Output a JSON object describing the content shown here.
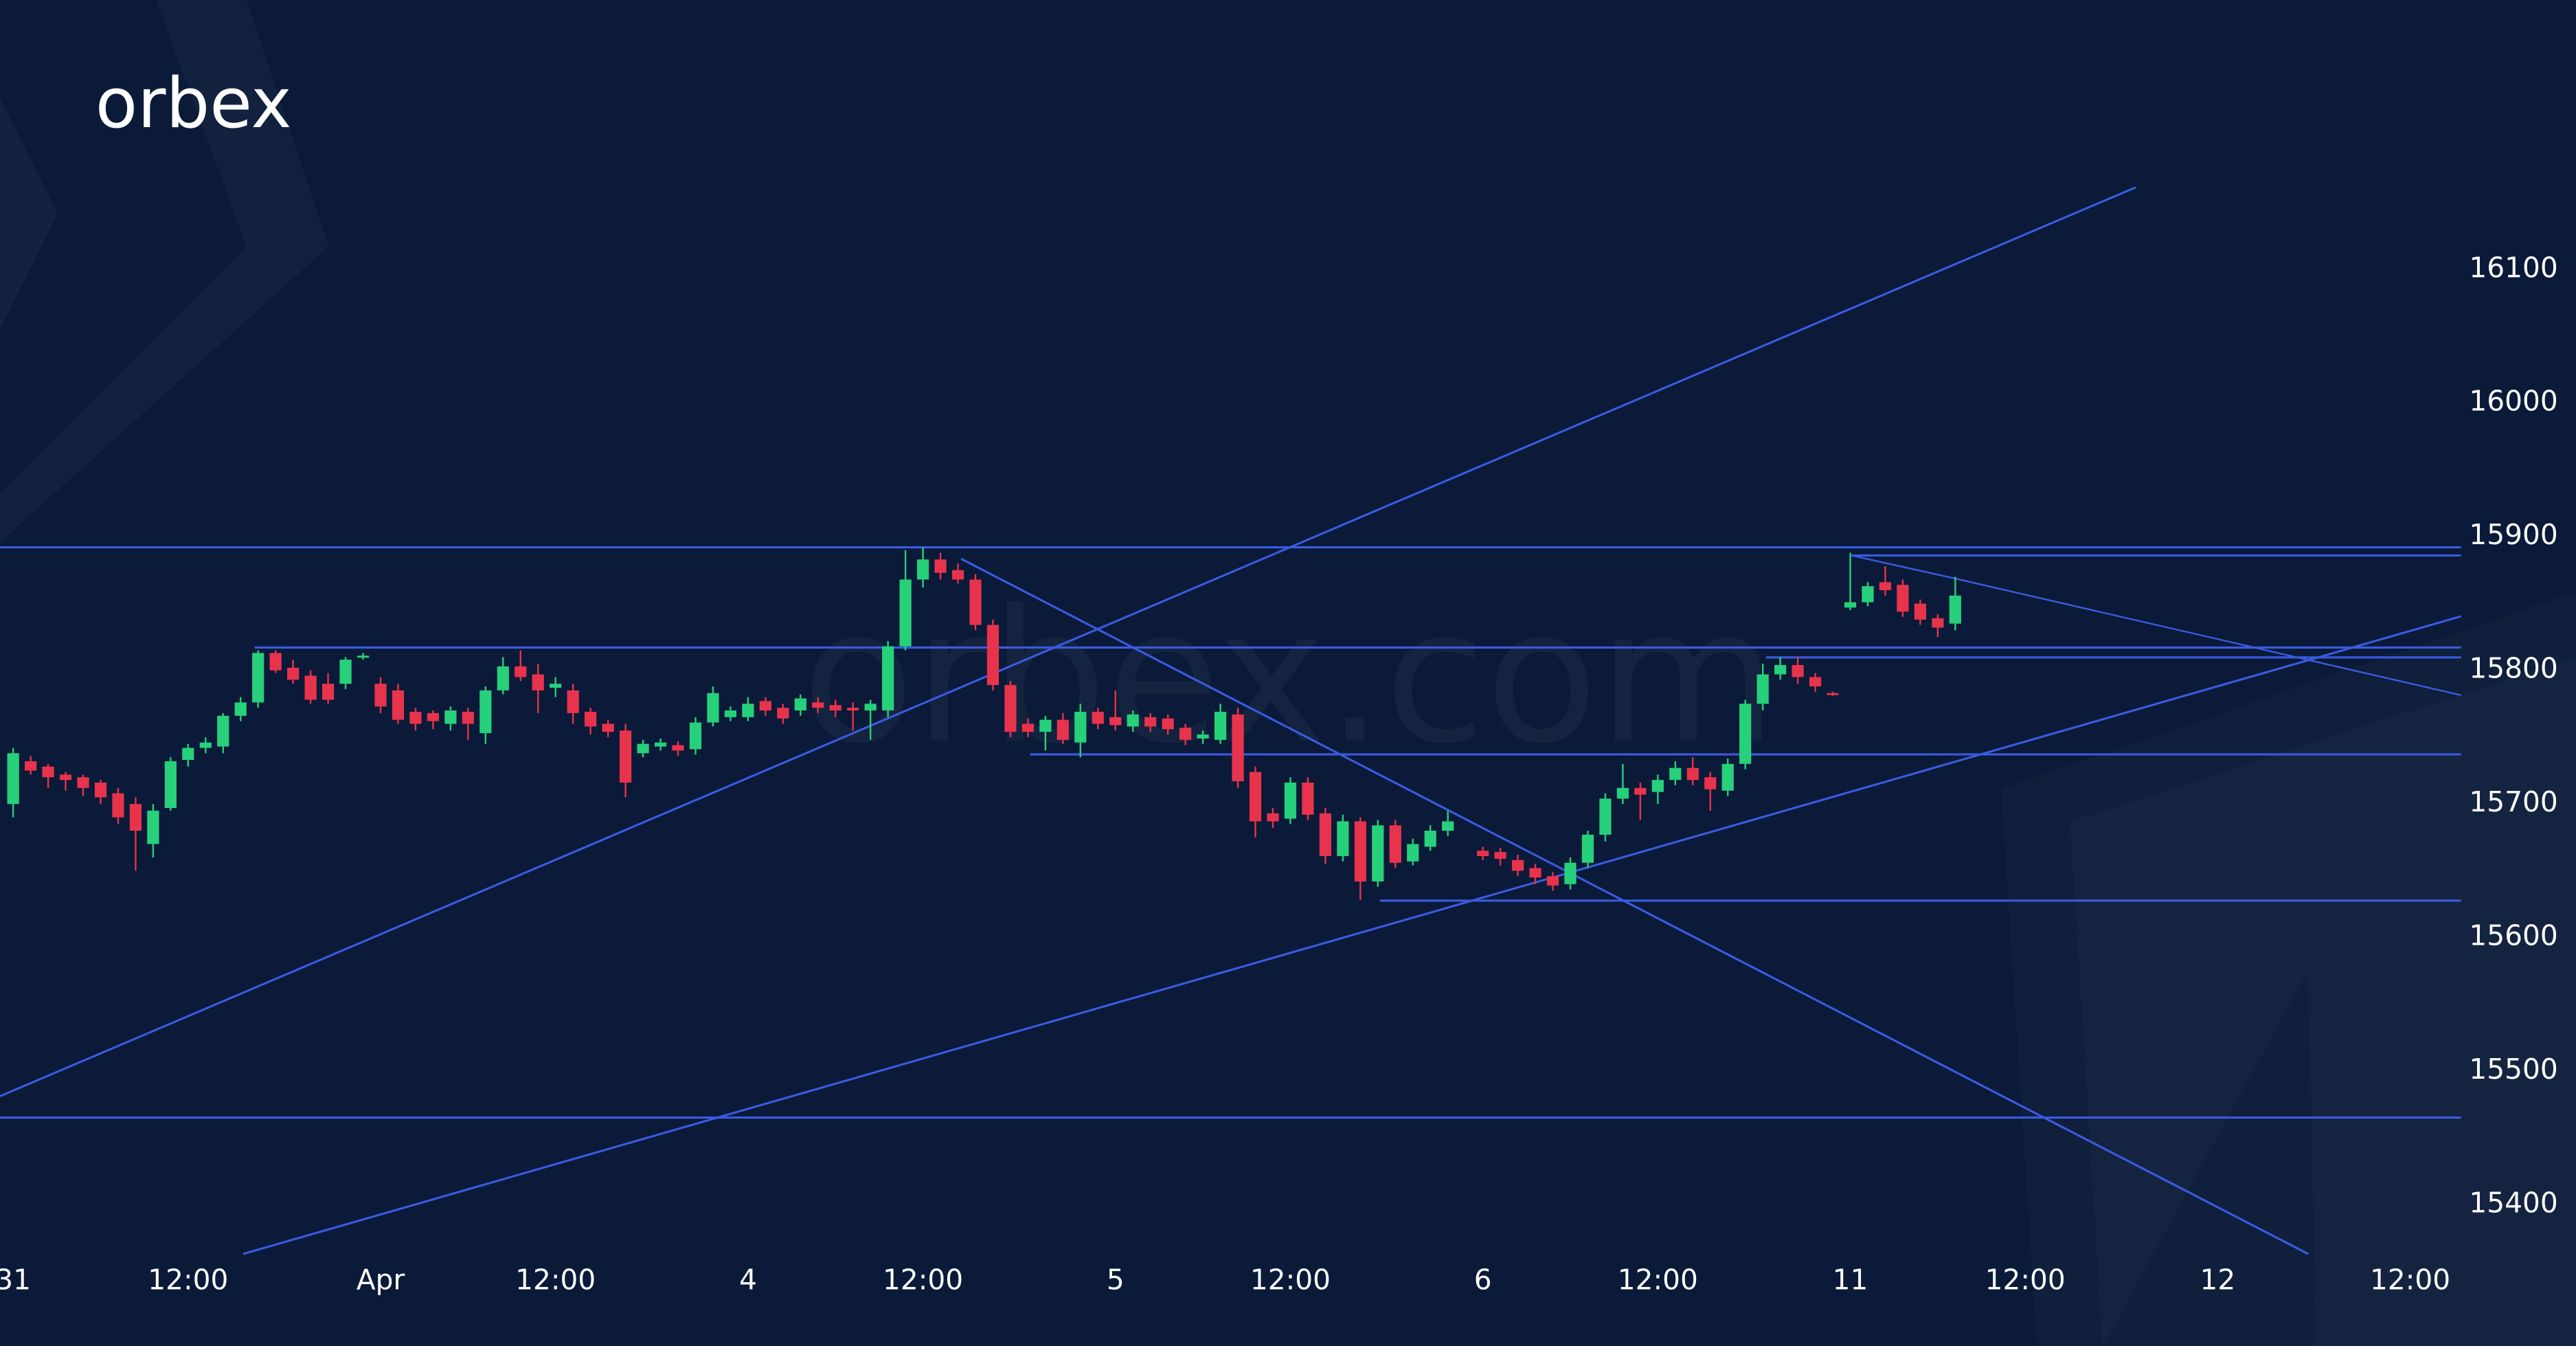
{
  "logo": "orbex",
  "watermark": "orbex.com",
  "chart_data": {
    "type": "candlestick",
    "up_color": "#27d07a",
    "down_color": "#e8334c",
    "ylim": [
      15300,
      16300
    ],
    "yticks": [
      15400,
      15500,
      15600,
      15700,
      15800,
      15900,
      16000,
      16100
    ],
    "categories": [
      "31",
      null,
      null,
      null,
      null,
      null,
      null,
      null,
      null,
      null,
      "12:00",
      null,
      null,
      null,
      null,
      null,
      null,
      null,
      null,
      null,
      null,
      "Apr",
      null,
      null,
      null,
      null,
      null,
      null,
      null,
      null,
      null,
      "12:00",
      null,
      null,
      null,
      null,
      null,
      null,
      null,
      null,
      null,
      null,
      "4",
      null,
      null,
      null,
      null,
      null,
      null,
      null,
      null,
      null,
      "12:00",
      null,
      null,
      null,
      null,
      null,
      null,
      null,
      null,
      null,
      null,
      "5",
      null,
      null,
      null,
      null,
      null,
      null,
      null,
      null,
      null,
      "12:00",
      null,
      null,
      null,
      null,
      null,
      null,
      null,
      null,
      null,
      null,
      "6",
      null,
      null,
      null,
      null,
      null,
      null,
      null,
      null,
      null,
      "12:00",
      null,
      null,
      null,
      null,
      null,
      null,
      null,
      null,
      null,
      null,
      "11",
      null,
      null,
      null,
      null,
      null,
      null,
      null,
      null,
      null,
      "12:00",
      null,
      null,
      null,
      null,
      null,
      null,
      null,
      null,
      null,
      null,
      "12",
      null,
      null,
      null,
      null,
      null,
      null,
      null,
      null,
      null,
      null,
      "12:00"
    ],
    "open": [
      15700,
      15732,
      15728,
      15722,
      15720,
      15716,
      15708,
      15700,
      15670,
      15697,
      15733,
      15742,
      15743,
      15766,
      15776,
      15813,
      15802,
      15796,
      15790,
      15790,
      15810,
      15790,
      15785,
      15769,
      15768,
      15760,
      15769,
      15753,
      15785,
      15803,
      15797,
      15787,
      15785,
      15769,
      15760,
      15755,
      15738,
      15743,
      15744,
      15741,
      15761,
      15765,
      15765,
      15777,
      15772,
      15770,
      15776,
      15774,
      15772,
      15770,
      15770,
      15818,
      15868,
      15883,
      15875,
      15868,
      15834,
      15789,
      15760,
      15754,
      15763,
      15746,
      15769,
      15765,
      15758,
      15765,
      15764,
      15757,
      15749,
      15748,
      15767,
      15724,
      15693,
      15689,
      15716,
      15693,
      15661,
      15687,
      15642,
      15684,
      15657,
      15668,
      15680,
      null,
      15665,
      15664,
      15658,
      15652,
      15646,
      15640,
      15656,
      15677,
      15704,
      15712,
      15709,
      15718,
      15727,
      15720,
      15710,
      15730,
      15775,
      15797,
      15804,
      15795,
      15783,
      15847,
      15851,
      15866,
      15864,
      15850,
      15839,
      15835,
      null,
      null,
      null,
      null,
      null,
      null,
      null,
      null,
      null,
      null,
      null,
      null,
      null,
      null,
      null,
      null,
      null,
      null,
      null,
      null,
      null,
      null,
      null,
      null,
      null,
      null
    ],
    "high": [
      15742,
      15736,
      15730,
      15724,
      15722,
      15718,
      15712,
      15705,
      15700,
      15735,
      15745,
      15750,
      15768,
      15780,
      15815,
      15815,
      15808,
      15800,
      15798,
      15810,
      15813,
      15795,
      15790,
      15772,
      15770,
      15773,
      15772,
      15788,
      15810,
      15815,
      15805,
      15795,
      15790,
      15772,
      15763,
      15760,
      15748,
      15749,
      15747,
      15765,
      15788,
      15773,
      15780,
      15780,
      15775,
      15782,
      15780,
      15778,
      15776,
      15778,
      15822,
      15890,
      15892,
      15888,
      15880,
      15872,
      15838,
      15792,
      15764,
      15766,
      15768,
      15775,
      15772,
      15785,
      15770,
      15768,
      15767,
      15760,
      15755,
      15775,
      15772,
      15728,
      15697,
      15720,
      15720,
      15697,
      15692,
      15690,
      15688,
      15688,
      15674,
      15684,
      15695,
      null,
      15668,
      15667,
      15662,
      15655,
      15649,
      15660,
      15680,
      15708,
      15730,
      15716,
      15722,
      15732,
      15735,
      15724,
      15734,
      15778,
      15805,
      15810,
      15810,
      15798,
      15784,
      15888,
      15866,
      15878,
      15868,
      15853,
      15842,
      15870,
      null,
      null,
      null,
      null,
      null,
      null,
      null,
      null,
      null,
      null,
      null,
      null,
      null,
      null,
      null,
      null,
      null,
      null,
      null,
      null,
      null,
      null,
      null,
      null,
      null,
      null
    ],
    "low": [
      15690,
      15722,
      15712,
      15710,
      15706,
      15700,
      15685,
      15650,
      15660,
      15695,
      15728,
      15738,
      15738,
      15762,
      15772,
      15798,
      15790,
      15775,
      15775,
      15786,
      15808,
      15768,
      15760,
      15755,
      15756,
      15755,
      15748,
      15745,
      15782,
      15792,
      15768,
      15780,
      15760,
      15752,
      15750,
      15705,
      15735,
      15740,
      15736,
      15737,
      15758,
      15762,
      15762,
      15766,
      15760,
      15766,
      15768,
      15765,
      15755,
      15748,
      15765,
      15815,
      15862,
      15868,
      15865,
      15830,
      15785,
      15750,
      15750,
      15740,
      15745,
      15735,
      15756,
      15755,
      15754,
      15754,
      15752,
      15744,
      15745,
      15745,
      15712,
      15675,
      15682,
      15685,
      15688,
      15655,
      15657,
      15628,
      15638,
      15652,
      15654,
      15665,
      15676,
      null,
      15658,
      15654,
      15646,
      15640,
      15635,
      15636,
      15652,
      15672,
      15700,
      15688,
      15700,
      15714,
      15714,
      15695,
      15706,
      15726,
      15770,
      15793,
      15790,
      15784,
      15781,
      15845,
      15848,
      15856,
      15840,
      15834,
      15825,
      15830,
      null,
      null,
      null,
      null,
      null,
      null,
      null,
      null,
      null,
      null,
      null,
      null,
      null,
      null,
      null,
      null,
      null,
      null,
      null,
      null,
      null,
      null,
      null,
      null,
      null,
      null
    ],
    "close": [
      15738,
      15725,
      15720,
      15718,
      15712,
      15705,
      15690,
      15680,
      15695,
      15732,
      15742,
      15746,
      15766,
      15776,
      15813,
      15800,
      15793,
      15778,
      15778,
      15808,
      15811,
      15773,
      15763,
      15760,
      15762,
      15770,
      15760,
      15785,
      15803,
      15795,
      15785,
      15790,
      15768,
      15758,
      15754,
      15716,
      15745,
      15746,
      15740,
      15761,
      15783,
      15770,
      15775,
      15770,
      15764,
      15779,
      15772,
      15770,
      15770,
      15775,
      15818,
      15868,
      15883,
      15873,
      15868,
      15834,
      15789,
      15754,
      15754,
      15763,
      15748,
      15769,
      15760,
      15759,
      15767,
      15758,
      15756,
      15748,
      15752,
      15769,
      15717,
      15687,
      15687,
      15716,
      15692,
      15661,
      15687,
      15642,
      15684,
      15656,
      15670,
      15680,
      15687,
      null,
      15661,
      15659,
      15650,
      15645,
      15639,
      15656,
      15677,
      15704,
      15712,
      15707,
      15718,
      15727,
      15718,
      15711,
      15730,
      15775,
      15797,
      15804,
      15795,
      15788,
      15782,
      15851,
      15863,
      15860,
      15844,
      15838,
      15832,
      15856,
      null,
      null,
      null,
      null,
      null,
      null,
      null,
      null,
      null,
      null,
      null,
      null,
      null,
      null,
      null,
      null,
      null,
      null,
      null,
      null,
      null,
      null,
      null,
      null,
      null,
      null
    ]
  }
}
